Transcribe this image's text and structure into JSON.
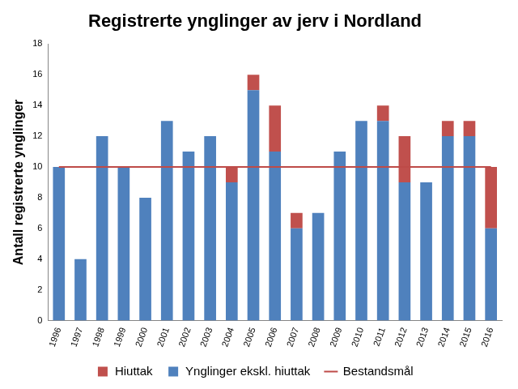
{
  "chart_data": {
    "type": "bar",
    "title": "Registrerte ynglinger av jerv i Nordland",
    "y_label": "Antall registrerte ynglinger",
    "categories": [
      "1996",
      "1997",
      "1998",
      "1999",
      "2000",
      "2001",
      "2002",
      "2003",
      "2004",
      "2005",
      "2006",
      "2007",
      "2008",
      "2009",
      "2010",
      "2011",
      "2012",
      "2013",
      "2014",
      "2015",
      "2016"
    ],
    "stacked": true,
    "series": [
      {
        "name": "Hiuttak",
        "color": "#c0504d",
        "values": [
          0,
          0,
          0,
          0,
          0,
          0,
          0,
          0,
          1,
          1,
          3,
          1,
          0,
          0,
          0,
          1,
          3,
          0,
          1,
          1,
          4
        ]
      },
      {
        "name": "Ynglinger ekskl. hiuttak",
        "color": "#4f81bd",
        "values": [
          10,
          4,
          12,
          10,
          8,
          13,
          11,
          12,
          9,
          15,
          11,
          6,
          7,
          11,
          13,
          13,
          9,
          9,
          12,
          12,
          6
        ]
      },
      {
        "name": "Bestandsmål",
        "type": "line",
        "color": "#be4b48",
        "line_style": "solid",
        "values": [
          10,
          10,
          10,
          10,
          10,
          10,
          10,
          10,
          10,
          10,
          10,
          10,
          10,
          10,
          10,
          10,
          10,
          10,
          10,
          10,
          10
        ]
      }
    ],
    "ylim": [
      0,
      18
    ],
    "yticks": [
      0,
      2,
      4,
      6,
      8,
      10,
      12,
      14,
      16,
      18
    ],
    "grid": false,
    "legend": "bottom"
  }
}
